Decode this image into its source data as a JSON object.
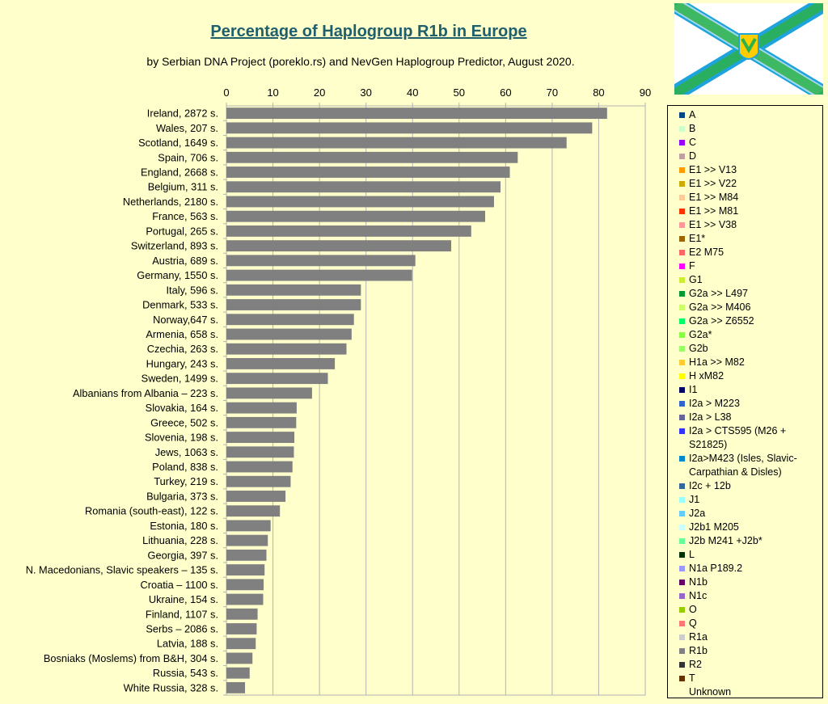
{
  "chart_data": {
    "type": "bar",
    "orientation": "horizontal",
    "title": "Percentage of Haplogroup R1b in Europe",
    "subtitle": "by Serbian DNA Project (poreklo.rs) and NevGen Haplogroup Predictor, August 2020.",
    "xlim": [
      0,
      90
    ],
    "xticks": [
      0,
      10,
      20,
      30,
      40,
      50,
      60,
      70,
      80,
      90
    ],
    "grid": true,
    "bar_color": "#808080",
    "categories": [
      "Ireland, 2872 s.",
      "Wales, 207 s.",
      "Scotland, 1649 s.",
      "Spain, 706 s.",
      "England, 2668 s.",
      "Belgium, 311 s.",
      "Netherlands, 2180 s.",
      "France, 563 s.",
      "Portugal, 265 s.",
      "Switzerland, 893 s.",
      "Austria, 689 s.",
      "Germany, 1550 s.",
      "Italy, 596 s.",
      "Denmark, 533 s.",
      "Norway,647 s.",
      "Armenia, 658 s.",
      "Czechia, 263 s.",
      "Hungary, 243 s.",
      "Sweden, 1499 s.",
      "Albanians from Albania – 223 s.",
      "Slovakia, 164 s.",
      "Greece, 502 s.",
      "Slovenia, 198 s.",
      "Jews, 1063 s.",
      "Poland, 838 s.",
      "Turkey, 219 s.",
      "Bulgaria, 373 s.",
      "Romania (south-east), 122 s.",
      "Estonia, 180 s.",
      "Lithuania, 228 s.",
      "Georgia, 397 s.",
      "N. Macedonians, Slavic speakers – 135 s.",
      "Croatia – 1100 s.",
      "Ukraine, 154 s.",
      "Finland, 1107 s.",
      "Serbs – 2086 s.",
      "Latvia, 188 s.",
      "Bosniaks (Moslems) from B&H, 304 s.",
      "Russia, 543 s.",
      "White Russia, 328 s."
    ],
    "values": [
      81.8,
      78.6,
      73.1,
      62.6,
      60.9,
      58.9,
      57.5,
      55.6,
      52.6,
      48.3,
      40.6,
      39.9,
      28.9,
      28.9,
      27.4,
      26.9,
      25.8,
      23.3,
      21.8,
      18.4,
      15.1,
      15.0,
      14.6,
      14.5,
      14.2,
      13.8,
      12.7,
      11.5,
      9.5,
      8.9,
      8.6,
      8.2,
      8.0,
      7.9,
      6.7,
      6.5,
      6.3,
      5.6,
      5.0,
      4.0
    ]
  },
  "legend": [
    {
      "label": "A",
      "color": "#004586"
    },
    {
      "label": "B",
      "color": "#ccffcc"
    },
    {
      "label": "C",
      "color": "#9900ff"
    },
    {
      "label": "D",
      "color": "#c0a0a0"
    },
    {
      "label": "E1 >> V13",
      "color": "#ff9900"
    },
    {
      "label": "E1 >> V22",
      "color": "#ccaa00"
    },
    {
      "label": "E1 >> M84",
      "color": "#ffcc99"
    },
    {
      "label": "E1 >> M81",
      "color": "#ff3300"
    },
    {
      "label": "E1 >> V38",
      "color": "#ff9999"
    },
    {
      "label": "E1*",
      "color": "#996600"
    },
    {
      "label": "E2 M75",
      "color": "#ff6666"
    },
    {
      "label": "F",
      "color": "#ff00ff"
    },
    {
      "label": "G1",
      "color": "#ccee33"
    },
    {
      "label": "G2a >> L497",
      "color": "#009933"
    },
    {
      "label": "G2a >> M406",
      "color": "#ccff66"
    },
    {
      "label": "G2a >> Z6552",
      "color": "#00ff66"
    },
    {
      "label": "G2a*",
      "color": "#88ff44"
    },
    {
      "label": "G2b",
      "color": "#99ff66"
    },
    {
      "label": "H1a >> M82",
      "color": "#ffcc33"
    },
    {
      "label": "H xM82",
      "color": "#ffff00"
    },
    {
      "label": "I1",
      "color": "#000066"
    },
    {
      "label": "I2a > M223",
      "color": "#3366cc"
    },
    {
      "label": "I2a > L38",
      "color": "#666699"
    },
    {
      "label": "I2a > CTS595 (M26 + S21825)",
      "color": "#3333ff"
    },
    {
      "label": "I2a>M423 (Isles, Slavic-Carpathian & Disles)",
      "color": "#0088cc"
    },
    {
      "label": "I2c + 12b",
      "color": "#336699"
    },
    {
      "label": "J1",
      "color": "#99ffff"
    },
    {
      "label": "J2a",
      "color": "#66ccff"
    },
    {
      "label": "J2b1 M205",
      "color": "#ccffff"
    },
    {
      "label": "J2b M241 +J2b*",
      "color": "#66ff99"
    },
    {
      "label": "L",
      "color": "#003300"
    },
    {
      "label": "N1a P189.2",
      "color": "#9999ff"
    },
    {
      "label": "N1b",
      "color": "#660066"
    },
    {
      "label": "N1c",
      "color": "#9966cc"
    },
    {
      "label": "O",
      "color": "#99cc00"
    },
    {
      "label": "Q",
      "color": "#ff7777"
    },
    {
      "label": "R1a",
      "color": "#cccccc"
    },
    {
      "label": "R1b",
      "color": "#808080"
    },
    {
      "label": "R2",
      "color": "#333333"
    },
    {
      "label": "T",
      "color": "#663300"
    },
    {
      "label": "Unknown",
      "color": "#ffffcc"
    }
  ],
  "colors": {
    "background": "#ffffcc",
    "title": "#1e5f6b",
    "flag_green": "#2db24a",
    "flag_blue": "#1fa3dc",
    "flag_yellow": "#ffcc00"
  }
}
